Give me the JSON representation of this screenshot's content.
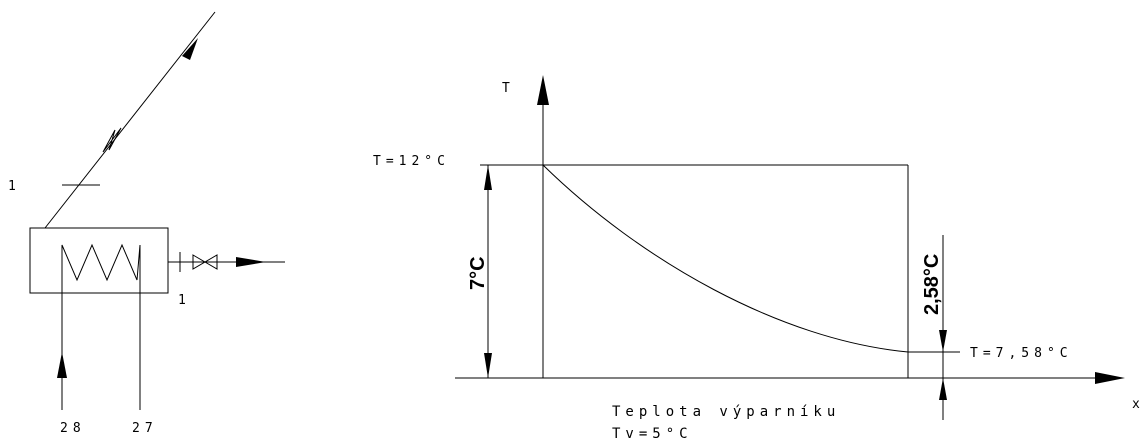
{
  "schematic": {
    "pipe_inlet_label": "1",
    "pipe_outlet_label": "1",
    "coil_inlet_label": "28",
    "coil_outlet_label": "27"
  },
  "graph": {
    "y_axis_label": "T",
    "x_axis_label": "x",
    "top_temperature": "T=12°C",
    "temperature_difference": "7°C",
    "end_difference": "2,58°C",
    "end_temperature": "T=7,58°C",
    "caption": "Teplota výparníku",
    "caption_value": "Tv=5°C"
  }
}
